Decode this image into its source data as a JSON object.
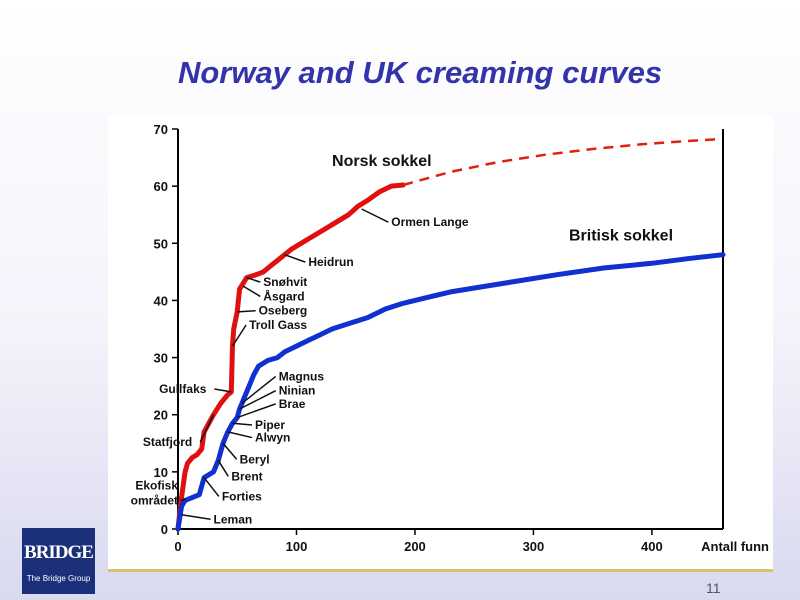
{
  "slide": {
    "title": "Norway and UK creaming curves",
    "page_number": "11",
    "logo_text": "BRIDGE",
    "logo_subtext": "The Bridge Group"
  },
  "colors": {
    "title": "#3333aa",
    "norsk": "#e01010",
    "britisk": "#1030d0",
    "forecast": "#e02010"
  },
  "chart_data": {
    "type": "line",
    "xlim": [
      0,
      460
    ],
    "ylim": [
      0,
      70
    ],
    "x_ticks": [
      "0",
      "100",
      "200",
      "300",
      "400"
    ],
    "x_tick_values": [
      0,
      100,
      200,
      300,
      400
    ],
    "x_axis_end_label": "Antall funn",
    "y_ticks": [
      "0",
      "10",
      "20",
      "30",
      "40",
      "50",
      "60",
      "70"
    ],
    "y_tick_values": [
      0,
      10,
      20,
      30,
      40,
      50,
      60,
      70
    ],
    "grid": false,
    "series": [
      {
        "name": "Norsk sokkel",
        "color": "#e01010",
        "style": "solid",
        "points": [
          [
            0,
            0
          ],
          [
            2,
            4
          ],
          [
            4,
            7
          ],
          [
            6,
            10
          ],
          [
            8,
            11.5
          ],
          [
            12,
            12.5
          ],
          [
            16,
            13
          ],
          [
            20,
            14
          ],
          [
            22,
            17
          ],
          [
            26,
            18.5
          ],
          [
            30,
            20
          ],
          [
            36,
            22
          ],
          [
            42,
            23.5
          ],
          [
            45,
            24
          ],
          [
            46,
            32
          ],
          [
            47,
            35
          ],
          [
            50,
            38
          ],
          [
            52,
            42
          ],
          [
            55,
            43
          ],
          [
            58,
            44
          ],
          [
            66,
            44.5
          ],
          [
            72,
            45
          ],
          [
            78,
            46
          ],
          [
            84,
            47
          ],
          [
            90,
            48
          ],
          [
            96,
            49
          ],
          [
            108,
            50.5
          ],
          [
            120,
            52
          ],
          [
            132,
            53.5
          ],
          [
            144,
            55
          ],
          [
            152,
            56.5
          ],
          [
            160,
            57.5
          ],
          [
            170,
            59
          ],
          [
            180,
            60
          ],
          [
            190,
            60.2
          ]
        ]
      },
      {
        "name": "Britisk sokkel",
        "color": "#1030d0",
        "style": "solid",
        "points": [
          [
            0,
            0
          ],
          [
            3,
            4
          ],
          [
            6,
            5
          ],
          [
            12,
            5.5
          ],
          [
            18,
            6
          ],
          [
            22,
            9
          ],
          [
            26,
            9.5
          ],
          [
            30,
            10
          ],
          [
            34,
            12
          ],
          [
            38,
            15
          ],
          [
            42,
            17
          ],
          [
            46,
            18.5
          ],
          [
            50,
            19.5
          ],
          [
            52,
            21
          ],
          [
            54,
            22
          ],
          [
            56,
            23
          ],
          [
            60,
            25
          ],
          [
            64,
            27
          ],
          [
            68,
            28.5
          ],
          [
            76,
            29.5
          ],
          [
            84,
            30
          ],
          [
            90,
            31
          ],
          [
            100,
            32
          ],
          [
            110,
            33
          ],
          [
            120,
            34
          ],
          [
            130,
            35
          ],
          [
            145,
            36
          ],
          [
            160,
            37
          ],
          [
            175,
            38.5
          ],
          [
            190,
            39.5
          ],
          [
            210,
            40.5
          ],
          [
            230,
            41.5
          ],
          [
            260,
            42.5
          ],
          [
            290,
            43.5
          ],
          [
            320,
            44.5
          ],
          [
            360,
            45.7
          ],
          [
            400,
            46.5
          ],
          [
            430,
            47.3
          ],
          [
            460,
            48
          ]
        ]
      },
      {
        "name": "",
        "color": "#e02010",
        "style": "dashed",
        "points": [
          [
            190,
            60.2
          ],
          [
            230,
            62.5
          ],
          [
            270,
            64.2
          ],
          [
            310,
            65.5
          ],
          [
            350,
            66.5
          ],
          [
            390,
            67.3
          ],
          [
            430,
            67.9
          ],
          [
            455,
            68.2
          ]
        ]
      }
    ],
    "labels": {
      "norsk": "Norsk sokkel",
      "britisk": "Britisk sokkel"
    },
    "annotations": [
      {
        "text": "Ormen Lange",
        "x": 155,
        "y": 56,
        "tx": 180,
        "ty": 53
      },
      {
        "text": "Heidrun",
        "x": 90,
        "y": 48,
        "tx": 110,
        "ty": 46
      },
      {
        "text": "Snøhvit",
        "x": 58,
        "y": 44,
        "tx": 72,
        "ty": 42.5
      },
      {
        "text": "Åsgard",
        "x": 55,
        "y": 42.5,
        "tx": 72,
        "ty": 40
      },
      {
        "text": "Oseberg",
        "x": 50,
        "y": 38,
        "tx": 68,
        "ty": 37.5
      },
      {
        "text": "Troll Gass",
        "x": 46,
        "y": 32,
        "tx": 60,
        "ty": 35
      },
      {
        "text": "Gullfaks",
        "x": 45,
        "y": 24,
        "tx": 24,
        "ty": 23.8
      },
      {
        "text": "Statfjord",
        "x": 30,
        "y": 20,
        "tx": 12,
        "ty": 14.5
      },
      {
        "text": "Ekofisk\nområdet",
        "x": 2,
        "y": 5,
        "tx": 0,
        "ty": 4.5
      },
      {
        "text": "Magnus",
        "x": 54,
        "y": 22,
        "tx": 85,
        "ty": 26
      },
      {
        "text": "Ninian",
        "x": 52,
        "y": 21,
        "tx": 85,
        "ty": 23.5
      },
      {
        "text": "Brae",
        "x": 50,
        "y": 19.5,
        "tx": 85,
        "ty": 21.2
      },
      {
        "text": "Piper",
        "x": 46,
        "y": 18.5,
        "tx": 65,
        "ty": 17.5
      },
      {
        "text": "Alwyn",
        "x": 42,
        "y": 17,
        "tx": 65,
        "ty": 15.3
      },
      {
        "text": "Beryl",
        "x": 38,
        "y": 15,
        "tx": 52,
        "ty": 11.5
      },
      {
        "text": "Brent",
        "x": 34,
        "y": 12,
        "tx": 45,
        "ty": 8.5
      },
      {
        "text": "Forties",
        "x": 22,
        "y": 9,
        "tx": 37,
        "ty": 5
      },
      {
        "text": "Leman",
        "x": 3,
        "y": 2.5,
        "tx": 30,
        "ty": 1
      }
    ]
  }
}
